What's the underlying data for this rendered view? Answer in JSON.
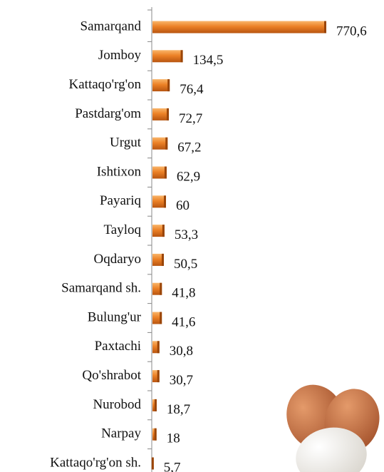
{
  "chart_data": {
    "type": "barh",
    "categories": [
      "Samarqand",
      "Jomboy",
      "Kattaqo'rg'on",
      "Pastdarg'om",
      "Urgut",
      "Ishtixon",
      "Payariq",
      "Tayloq",
      "Oqdaryo",
      "Samarqand sh.",
      "Bulung'ur",
      "Paxtachi",
      "Qo'shrabot",
      "Nurobod",
      "Narpay",
      "Kattaqo'rg'on sh."
    ],
    "values": [
      770.6,
      134.5,
      76.4,
      72.7,
      67.2,
      62.9,
      60,
      53.3,
      50.5,
      41.8,
      41.6,
      30.8,
      30.7,
      18.7,
      18,
      5.7
    ],
    "value_labels": [
      "770,6",
      "134,5",
      "76,4",
      "72,7",
      "67,2",
      "62,9",
      "60",
      "53,3",
      "50,5",
      "41,8",
      "41,6",
      "30,8",
      "30,7",
      "18,7",
      "18",
      "5,7"
    ],
    "color": "#e8781e"
  }
}
